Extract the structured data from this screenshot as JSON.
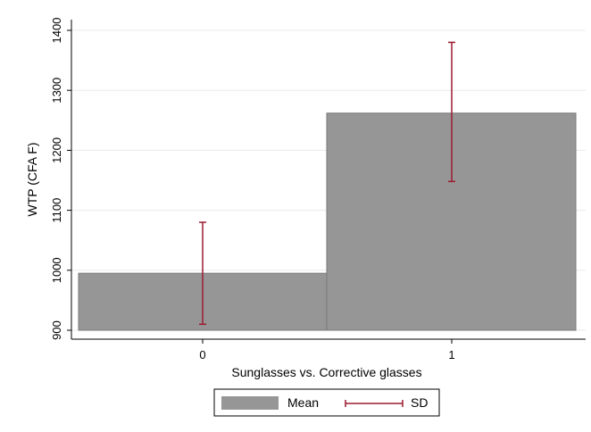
{
  "chart_data": {
    "type": "bar",
    "title": "",
    "xlabel": "Sunglasses vs. Corrective glasses",
    "ylabel": "WTP (CFA F)",
    "categories": [
      "0",
      "1"
    ],
    "series": [
      {
        "name": "Mean",
        "values": [
          995,
          1262
        ]
      }
    ],
    "error_bars": {
      "name": "SD",
      "lower": [
        910,
        1148
      ],
      "upper": [
        1080,
        1380
      ]
    },
    "ylim": [
      900,
      1400
    ],
    "yticks": [
      "900",
      "1000",
      "1100",
      "1200",
      "1300",
      "1400"
    ],
    "grid": true,
    "legend": {
      "position": "bottom",
      "entries": [
        "Mean",
        "SD"
      ]
    },
    "colors": {
      "bar": "#969696",
      "bar_edge": "#7a7a7a",
      "error": "#9b1b30",
      "grid": "#eaeaea"
    }
  }
}
